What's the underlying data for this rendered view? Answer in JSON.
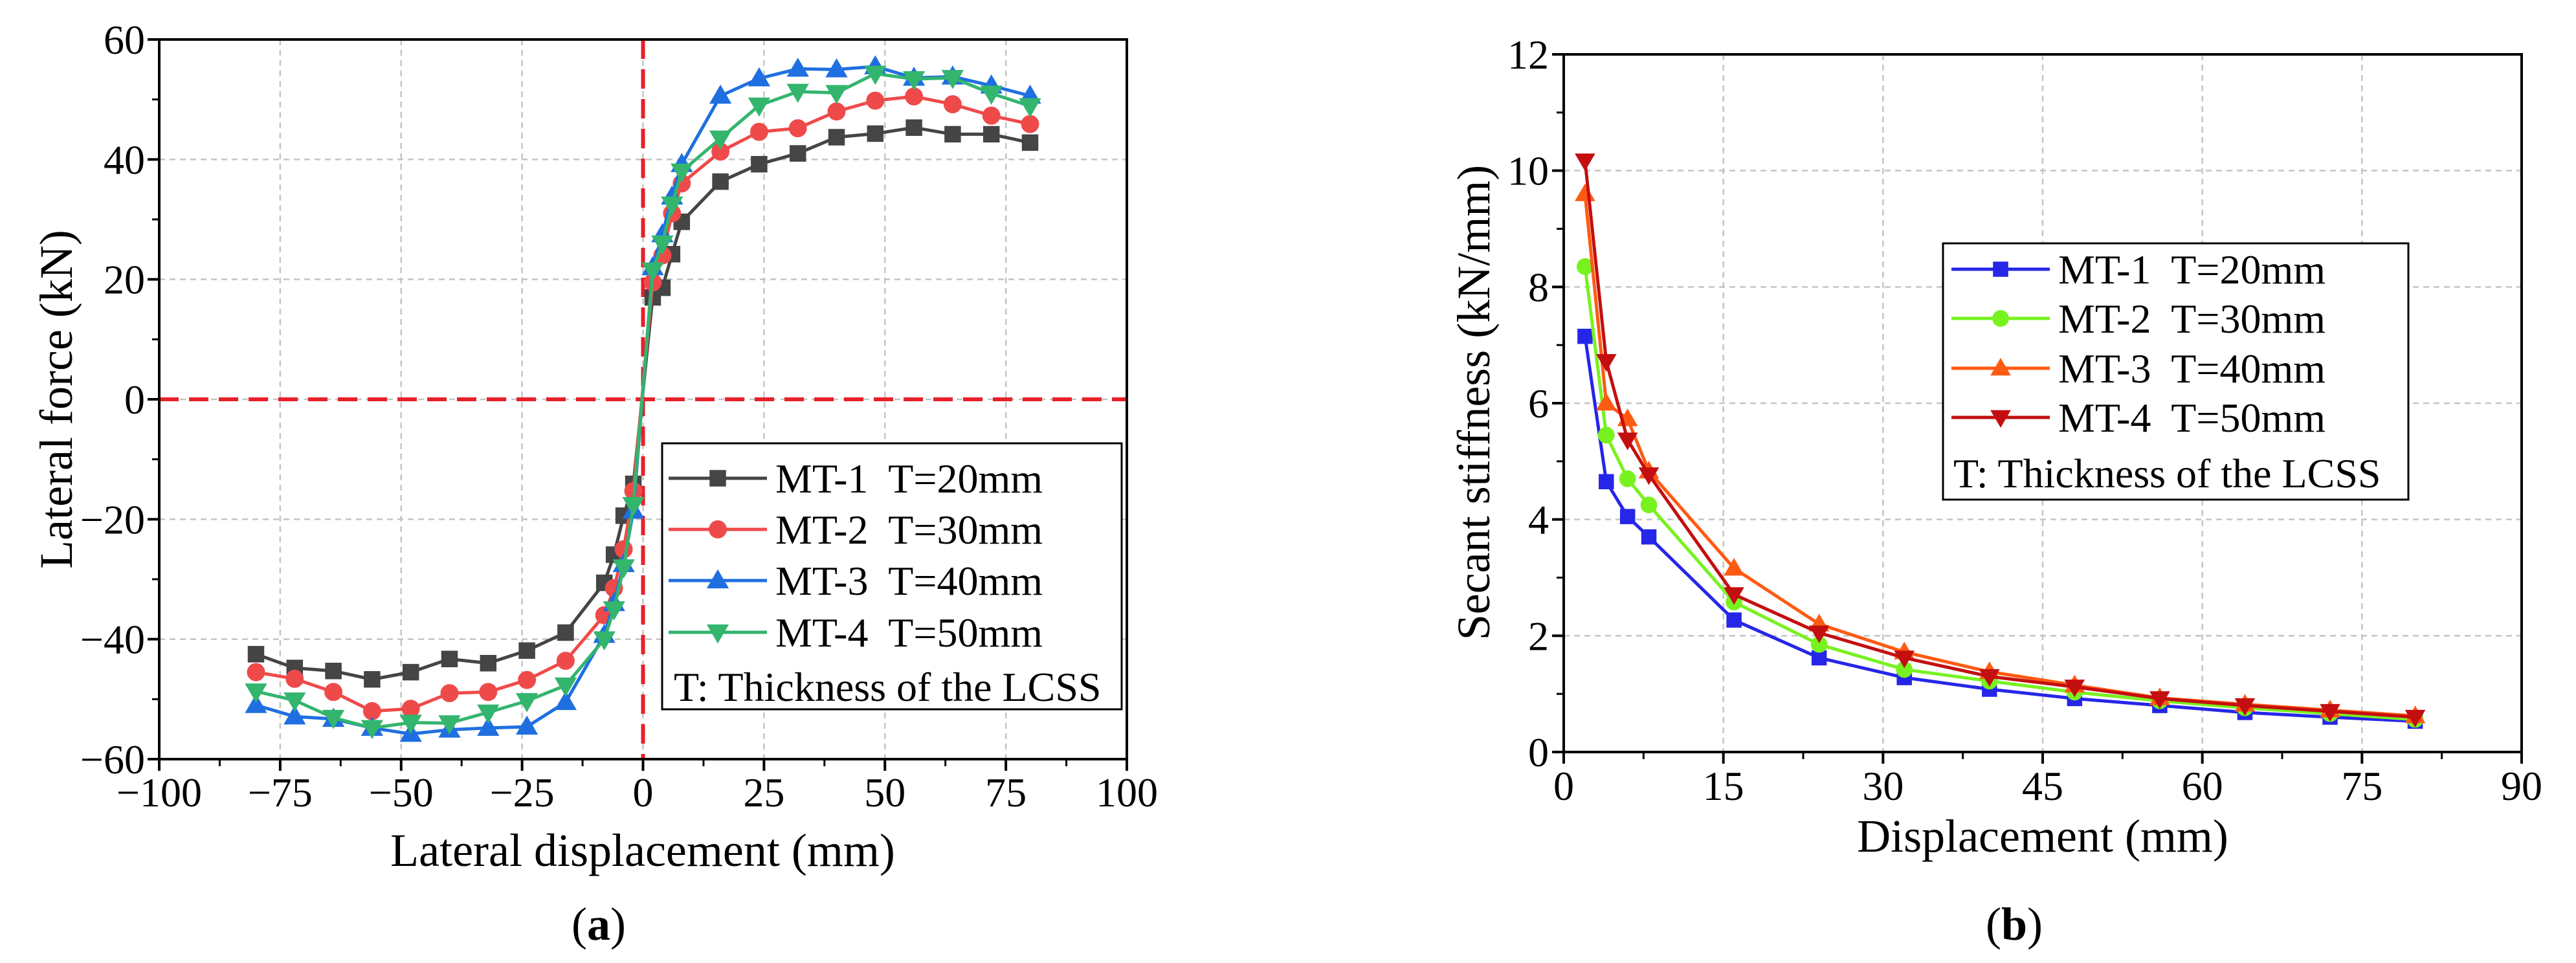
{
  "chart_data": [
    {
      "type": "line",
      "panel_label": {
        "open": "(",
        "letter": "a",
        "close": ")"
      },
      "xlabel": "Lateral displacement (mm)",
      "ylabel": "Lateral force (kN)",
      "xlim": [
        -100,
        100
      ],
      "ylim": [
        -60,
        60
      ],
      "xticks": [
        -100,
        -75,
        -50,
        -25,
        0,
        25,
        50,
        75,
        100
      ],
      "xtick_labels": [
        "−100",
        "−75",
        "−50",
        "−25",
        "0",
        "25",
        "50",
        "75",
        "100"
      ],
      "yticks": [
        -60,
        -40,
        -20,
        0,
        20,
        40,
        60
      ],
      "ytick_labels": [
        "−60",
        "−40",
        "−20",
        "0",
        "20",
        "40",
        "60"
      ],
      "grid": true,
      "reference_lines": {
        "x": [
          0
        ],
        "y": [
          0
        ],
        "color": "#e8202a"
      },
      "legend": {
        "position": "lower-right",
        "note": "T: Thickness of the LCSS"
      },
      "x": [
        -80,
        -72,
        -64,
        -56,
        -48,
        -40,
        -32,
        -24,
        -16,
        -8,
        -6,
        -4,
        -2,
        2,
        4,
        6,
        8,
        16,
        24,
        32,
        40,
        48,
        56,
        64,
        72,
        80
      ],
      "series": [
        {
          "name": "MT-1  T=20mm",
          "color": "#454545",
          "marker": "square",
          "values": [
            -42.5,
            -44.8,
            -45.3,
            -46.7,
            -45.5,
            -43.3,
            -44.0,
            -41.9,
            -38.9,
            -30.6,
            -25.9,
            -19.4,
            -14.1,
            17.0,
            18.6,
            24.2,
            29.6,
            36.3,
            39.2,
            41.0,
            43.7,
            44.3,
            45.3,
            44.2,
            44.2,
            42.8
          ]
        },
        {
          "name": "MT-2  T=30mm",
          "color": "#ef4a4a",
          "marker": "circle",
          "values": [
            -45.5,
            -46.6,
            -48.8,
            -52.0,
            -51.6,
            -49.0,
            -48.8,
            -46.8,
            -43.6,
            -36.0,
            -31.5,
            -25.0,
            -15.3,
            19.5,
            24.0,
            31.0,
            36.0,
            41.3,
            44.6,
            45.2,
            48.0,
            49.8,
            50.5,
            49.2,
            47.3,
            45.9
          ]
        },
        {
          "name": "MT-3  T=40mm",
          "color": "#1f6fe0",
          "marker": "triangle-up",
          "values": [
            -51.0,
            -52.9,
            -53.3,
            -54.8,
            -55.8,
            -55.1,
            -54.8,
            -54.6,
            -50.5,
            -39.3,
            -34.0,
            -27.5,
            -18.6,
            22.0,
            27.5,
            33.8,
            39.2,
            50.6,
            53.5,
            55.1,
            55.0,
            55.5,
            53.6,
            53.8,
            52.3,
            50.6
          ]
        },
        {
          "name": "MT-4  T=50mm",
          "color": "#33b56e",
          "marker": "triangle-down",
          "values": [
            -48.7,
            -50.2,
            -53.1,
            -54.8,
            -53.9,
            -54.0,
            -52.2,
            -50.3,
            -47.7,
            -40.0,
            -35.0,
            -28.0,
            -17.6,
            21.5,
            26.0,
            32.5,
            38.0,
            43.5,
            49.0,
            51.3,
            51.1,
            54.3,
            53.4,
            53.6,
            51.0,
            48.9
          ]
        }
      ]
    },
    {
      "type": "line",
      "panel_label": {
        "open": "(",
        "letter": "b",
        "close": ")"
      },
      "xlabel": "Displacement (mm)",
      "ylabel": "Secant stiffness (kN/mm)",
      "xlim": [
        0,
        90
      ],
      "ylim": [
        0,
        12
      ],
      "xticks": [
        0,
        15,
        30,
        45,
        60,
        75,
        90
      ],
      "xtick_labels": [
        "0",
        "15",
        "30",
        "45",
        "60",
        "75",
        "90"
      ],
      "yticks": [
        0,
        2,
        4,
        6,
        8,
        10,
        12
      ],
      "ytick_labels": [
        "0",
        "2",
        "4",
        "6",
        "8",
        "10",
        "12"
      ],
      "grid": true,
      "legend": {
        "position": "center-right",
        "note": "T: Thickness of the LCSS"
      },
      "x": [
        2,
        4,
        6,
        8,
        16,
        24,
        32,
        40,
        48,
        56,
        64,
        72,
        80
      ],
      "series": [
        {
          "name": "MT-1  T=20mm",
          "color": "#2626e8",
          "marker": "square",
          "values": [
            7.15,
            4.65,
            4.05,
            3.7,
            2.27,
            1.62,
            1.28,
            1.08,
            0.92,
            0.8,
            0.68,
            0.6,
            0.53
          ]
        },
        {
          "name": "MT-2  T=30mm",
          "color": "#77f21f",
          "marker": "circle",
          "values": [
            8.35,
            5.45,
            4.7,
            4.25,
            2.58,
            1.85,
            1.42,
            1.22,
            1.03,
            0.88,
            0.76,
            0.66,
            0.56
          ]
        },
        {
          "name": "MT-3  T=40mm",
          "color": "#ff5a12",
          "marker": "triangle-up",
          "values": [
            9.6,
            6.0,
            5.73,
            4.83,
            3.16,
            2.2,
            1.72,
            1.38,
            1.15,
            0.93,
            0.82,
            0.72,
            0.62
          ]
        },
        {
          "name": "MT-4  T=50mm",
          "color": "#c30f0f",
          "marker": "triangle-down",
          "values": [
            10.17,
            6.72,
            5.37,
            4.77,
            2.71,
            2.05,
            1.62,
            1.3,
            1.12,
            0.92,
            0.8,
            0.7,
            0.6
          ]
        }
      ]
    }
  ]
}
